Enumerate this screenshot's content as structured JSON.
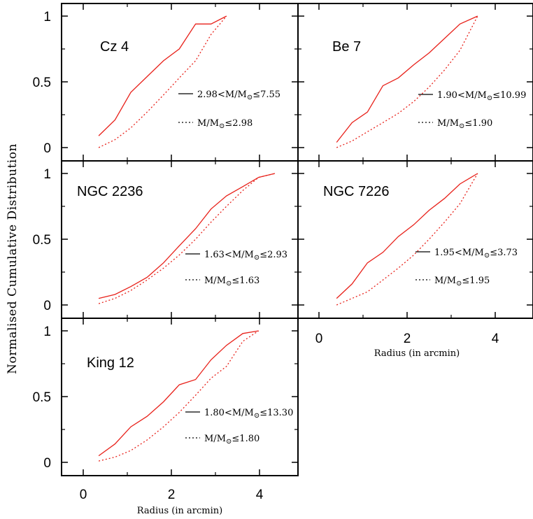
{
  "ylabel": "Normalised Cumulative Distribution",
  "xlabel": "Radius (in arcmin)",
  "colors": {
    "series": "#e8211a",
    "frame": "#000000"
  },
  "chart_data": [
    {
      "type": "line",
      "title": "Cz 4",
      "xlim": [
        -0.5,
        4.8
      ],
      "ylim": [
        -0.1,
        1.1
      ],
      "xticks": [
        0,
        2,
        4
      ],
      "xtick_labels": [
        "0",
        "2",
        "4"
      ],
      "yticks": [
        0,
        0.5,
        1
      ],
      "ytick_labels": [
        "0",
        "0.5",
        "1"
      ],
      "series": [
        {
          "name": "2.98<M/M⊙≤7.55",
          "style": "solid",
          "x": [
            0.35,
            0.72,
            1.08,
            1.45,
            1.82,
            2.18,
            2.55,
            2.9,
            3.25
          ],
          "y": [
            0.09,
            0.21,
            0.42,
            0.54,
            0.66,
            0.75,
            0.94,
            0.94,
            1.0
          ]
        },
        {
          "name": "M/M⊙≤2.98",
          "style": "dotted",
          "x": [
            0.35,
            0.72,
            1.08,
            1.45,
            1.82,
            2.18,
            2.55,
            2.9,
            3.25
          ],
          "y": [
            0.0,
            0.06,
            0.15,
            0.27,
            0.4,
            0.53,
            0.66,
            0.86,
            1.0
          ]
        }
      ]
    },
    {
      "type": "line",
      "title": "Be 7",
      "xlim": [
        -0.5,
        4.8
      ],
      "ylim": [
        -0.1,
        1.1
      ],
      "xticks": [
        0,
        2,
        4
      ],
      "xtick_labels": [
        "0",
        "2",
        "4"
      ],
      "yticks": [
        0,
        0.5,
        1
      ],
      "ytick_labels": [],
      "series": [
        {
          "name": "1.90<M/M⊙≤10.99",
          "style": "solid",
          "x": [
            0.4,
            0.75,
            1.1,
            1.45,
            1.8,
            2.15,
            2.5,
            2.85,
            3.2,
            3.6
          ],
          "y": [
            0.04,
            0.19,
            0.27,
            0.47,
            0.53,
            0.63,
            0.72,
            0.83,
            0.94,
            1.0
          ]
        },
        {
          "name": "M/M⊙≤1.90",
          "style": "dotted",
          "x": [
            0.4,
            0.75,
            1.1,
            1.45,
            1.8,
            2.15,
            2.5,
            2.85,
            3.2,
            3.6
          ],
          "y": [
            0.0,
            0.05,
            0.12,
            0.19,
            0.26,
            0.35,
            0.46,
            0.59,
            0.74,
            1.0
          ]
        }
      ]
    },
    {
      "type": "line",
      "title": "NGC 2236",
      "xlim": [
        -0.5,
        4.8
      ],
      "ylim": [
        -0.1,
        1.1
      ],
      "xticks": [
        0,
        2,
        4
      ],
      "xtick_labels": [
        "0",
        "2",
        "4"
      ],
      "yticks": [
        0,
        0.5,
        1
      ],
      "ytick_labels": [
        "0",
        "0.5",
        "1"
      ],
      "series": [
        {
          "name": "1.63<M/M⊙≤2.93",
          "style": "solid",
          "x": [
            0.35,
            0.72,
            1.08,
            1.45,
            1.82,
            2.18,
            2.55,
            2.9,
            3.25,
            3.62,
            3.98,
            4.35
          ],
          "y": [
            0.05,
            0.08,
            0.14,
            0.21,
            0.32,
            0.45,
            0.58,
            0.73,
            0.83,
            0.9,
            0.97,
            1.0
          ]
        },
        {
          "name": "M/M⊙≤1.63",
          "style": "dotted",
          "x": [
            0.35,
            0.72,
            1.08,
            1.45,
            1.82,
            2.18,
            2.55,
            2.9,
            3.25,
            3.62,
            3.98,
            4.35
          ],
          "y": [
            0.01,
            0.05,
            0.11,
            0.19,
            0.28,
            0.38,
            0.5,
            0.63,
            0.75,
            0.87,
            0.97,
            1.0
          ]
        }
      ]
    },
    {
      "type": "line",
      "title": "NGC 7226",
      "xlim": [
        -0.5,
        4.8
      ],
      "ylim": [
        -0.1,
        1.1
      ],
      "xticks": [
        0,
        2,
        4
      ],
      "xtick_labels": [],
      "yticks": [
        0,
        0.5,
        1
      ],
      "ytick_labels": [],
      "series": [
        {
          "name": "1.95<M/M⊙≤3.73",
          "style": "solid",
          "x": [
            0.4,
            0.75,
            1.1,
            1.45,
            1.8,
            2.15,
            2.5,
            2.85,
            3.2,
            3.6
          ],
          "y": [
            0.05,
            0.16,
            0.32,
            0.4,
            0.52,
            0.61,
            0.72,
            0.81,
            0.92,
            1.0
          ]
        },
        {
          "name": "M/M⊙≤1.95",
          "style": "dotted",
          "x": [
            0.4,
            0.75,
            1.1,
            1.45,
            1.8,
            2.15,
            2.5,
            2.85,
            3.2,
            3.6
          ],
          "y": [
            0.0,
            0.05,
            0.1,
            0.19,
            0.28,
            0.38,
            0.5,
            0.63,
            0.77,
            1.0
          ]
        }
      ]
    },
    {
      "type": "line",
      "title": "King 12",
      "xlim": [
        -0.5,
        4.8
      ],
      "ylim": [
        -0.1,
        1.1
      ],
      "xticks": [
        0,
        2,
        4
      ],
      "xtick_labels": [
        "0",
        "2",
        "4"
      ],
      "yticks": [
        0,
        0.5,
        1
      ],
      "ytick_labels": [
        "0",
        "0.5",
        "1"
      ],
      "series": [
        {
          "name": "1.80<M/M⊙≤13.30",
          "style": "solid",
          "x": [
            0.35,
            0.72,
            1.08,
            1.45,
            1.82,
            2.18,
            2.55,
            2.9,
            3.25,
            3.62,
            3.98
          ],
          "y": [
            0.05,
            0.14,
            0.27,
            0.35,
            0.46,
            0.59,
            0.63,
            0.78,
            0.89,
            0.98,
            1.0
          ]
        },
        {
          "name": "M/M⊙≤1.80",
          "style": "dotted",
          "x": [
            0.35,
            0.72,
            1.08,
            1.45,
            1.82,
            2.18,
            2.55,
            2.9,
            3.25,
            3.62,
            3.98
          ],
          "y": [
            0.01,
            0.04,
            0.09,
            0.17,
            0.27,
            0.38,
            0.51,
            0.64,
            0.73,
            0.92,
            1.0
          ]
        }
      ]
    }
  ]
}
